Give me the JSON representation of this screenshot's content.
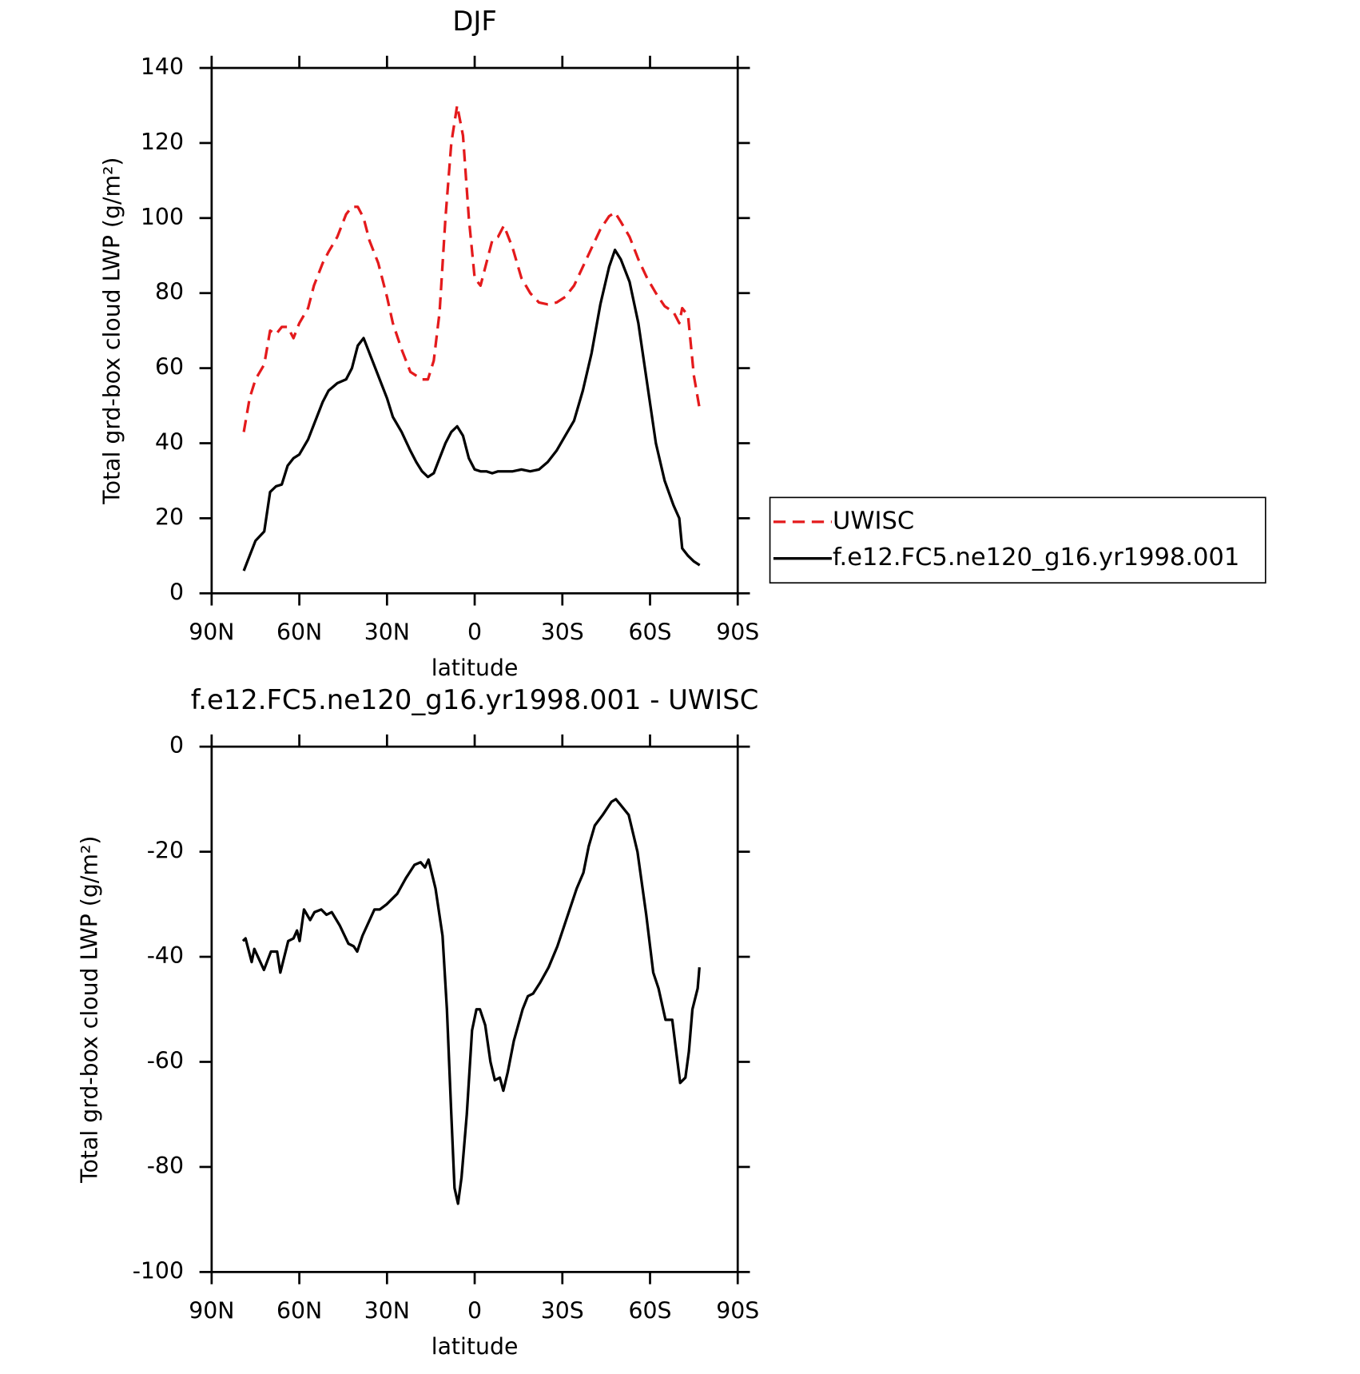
{
  "chart_data": [
    {
      "type": "line",
      "title": "DJF",
      "x_label": "latitude",
      "y_label": "Total grd-box cloud LWP (g/m²)",
      "xlim": [
        90,
        -90
      ],
      "xticks": [
        {
          "value": 90,
          "label": "90N"
        },
        {
          "value": 60,
          "label": "60N"
        },
        {
          "value": 30,
          "label": "30N"
        },
        0,
        {
          "value": -30,
          "label": "30S"
        },
        {
          "value": -60,
          "label": "60S"
        },
        {
          "value": -90,
          "label": "90S"
        }
      ],
      "ylim": [
        0,
        140
      ],
      "yticks": [
        0,
        20,
        40,
        60,
        80,
        100,
        120,
        140
      ],
      "legend": "outside-right",
      "x": [
        79,
        77,
        75,
        72,
        70,
        68,
        66,
        64,
        62,
        60,
        57,
        55,
        52,
        50,
        47,
        44,
        42,
        40,
        38,
        36,
        33,
        30,
        28,
        25,
        22,
        20,
        18,
        16,
        14,
        12,
        10,
        8,
        6,
        4,
        2,
        0,
        -2,
        -4,
        -6,
        -8,
        -10,
        -13,
        -16,
        -19,
        -22,
        -25,
        -28,
        -31,
        -34,
        -37,
        -40,
        -43,
        -46,
        -48,
        -50,
        -53,
        -56,
        -59,
        -62,
        -65,
        -68,
        -70,
        -71,
        -73,
        -75,
        -77
      ],
      "series": [
        {
          "name": "UWISC",
          "color": "#e41a1c",
          "dashed": true,
          "values": [
            43,
            52,
            57,
            61,
            70,
            69,
            71,
            71,
            68,
            72,
            76,
            82,
            88,
            91,
            95,
            101,
            103,
            103,
            100,
            94,
            88,
            79,
            72,
            65,
            59,
            58,
            57,
            57,
            62,
            75,
            100,
            120,
            130,
            122,
            100,
            84,
            82,
            88,
            94,
            95,
            98,
            92,
            84,
            80,
            77.5,
            77,
            77.5,
            79,
            82,
            87,
            92,
            97,
            100.5,
            101.5,
            99,
            95,
            89,
            84,
            80,
            76.5,
            75,
            72,
            76,
            74,
            58,
            49
          ]
        },
        {
          "name": "f.e12.FC5.ne120_g16.yr1998.001",
          "color": "#000000",
          "dashed": false,
          "values": [
            6,
            10,
            14,
            16.5,
            27,
            28.5,
            29,
            34,
            36,
            37,
            41,
            45,
            51,
            54,
            56,
            57,
            60,
            66,
            68,
            64,
            58,
            52,
            47,
            43,
            38,
            35,
            32.5,
            31,
            32,
            36,
            40,
            43,
            44.5,
            42,
            36,
            33,
            32.5,
            32.5,
            32,
            32.5,
            32.5,
            32.5,
            33,
            32.5,
            33,
            35,
            38,
            42,
            46,
            54,
            64,
            77,
            87,
            91.5,
            89,
            83,
            72,
            56,
            40,
            30,
            23.5,
            20,
            12,
            10,
            8.5,
            7.5
          ]
        }
      ]
    },
    {
      "type": "line",
      "title": "f.e12.FC5.ne120_g16.yr1998.001 - UWISC",
      "x_label": "latitude",
      "y_label": "Total grd-box cloud LWP (g/m²)",
      "xlim": [
        90,
        -90
      ],
      "xticks": [
        {
          "value": 90,
          "label": "90N"
        },
        {
          "value": 60,
          "label": "60N"
        },
        {
          "value": 30,
          "label": "30N"
        },
        0,
        {
          "value": -30,
          "label": "30S"
        },
        {
          "value": -60,
          "label": "60S"
        },
        {
          "value": -90,
          "label": "90S"
        }
      ],
      "ylim": [
        -100,
        0
      ],
      "yticks": [
        -100,
        -80,
        -60,
        -40,
        -20,
        0
      ],
      "x": [
        79.3,
        78.4,
        76.3,
        75.4,
        72.1,
        69.7,
        67.6,
        66.5,
        63.8,
        62.0,
        60.8,
        59.9,
        58.4,
        56.3,
        54.8,
        52.5,
        50.7,
        48.9,
        46.2,
        43.2,
        41.4,
        40.2,
        38.4,
        34.3,
        32.5,
        30.1,
        26.5,
        23.5,
        20.6,
        18.5,
        17.0,
        15.8,
        13.4,
        11.0,
        9.5,
        8.0,
        6.9,
        5.7,
        4.5,
        2.7,
        0.9,
        -0.6,
        -1.8,
        -3.6,
        -5.4,
        -6.9,
        -8.6,
        -9.8,
        -11.3,
        -13.4,
        -16.4,
        -18.2,
        -20.0,
        -22.3,
        -25.3,
        -28.3,
        -31.3,
        -34.9,
        -37.2,
        -39.0,
        -41.1,
        -43.8,
        -46.8,
        -48.3,
        -49.8,
        -52.7,
        -55.7,
        -58.7,
        -61.1,
        -62.9,
        -65.3,
        -67.6,
        -69.4,
        -70.3,
        -72.1,
        -73.3,
        -74.5,
        -76.3,
        -76.9
      ],
      "series": [
        {
          "color": "#000000",
          "dashed": false,
          "values": [
            -37,
            -36.5,
            -41,
            -38.5,
            -42.5,
            -39,
            -39,
            -43,
            -37,
            -36.5,
            -35,
            -37,
            -31,
            -33,
            -31.5,
            -31,
            -32,
            -31.5,
            -34,
            -37.5,
            -38,
            -39,
            -36,
            -31,
            -31,
            -30,
            -28,
            -25,
            -22.5,
            -22,
            -23,
            -21.5,
            -27,
            -36,
            -50,
            -70,
            -84,
            -87,
            -82,
            -70,
            -54,
            -50,
            -50,
            -53,
            -60,
            -63.5,
            -63,
            -65.5,
            -62,
            -56,
            -50,
            -47.5,
            -47,
            -45,
            -42,
            -38,
            -33,
            -27,
            -24,
            -19,
            -15,
            -13,
            -10.5,
            -10,
            -11,
            -13,
            -20,
            -32,
            -43,
            -46,
            -52,
            -52,
            -60,
            -64,
            -63,
            -58,
            -50,
            -46,
            -42
          ]
        }
      ]
    }
  ]
}
